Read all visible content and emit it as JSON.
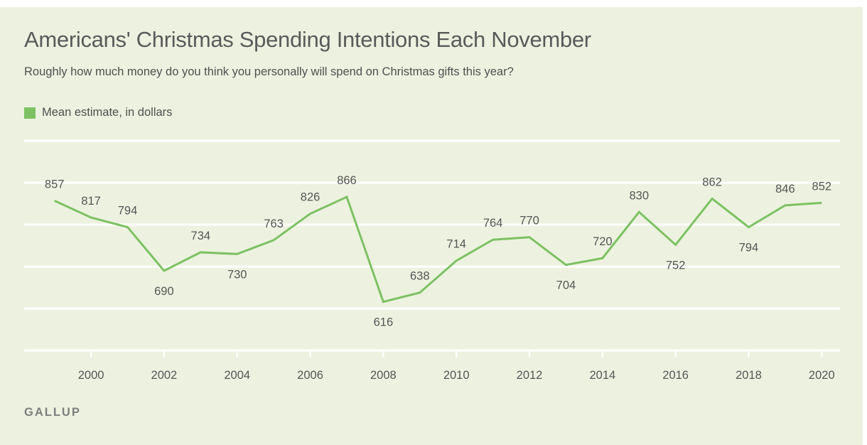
{
  "title": "Americans' Christmas Spending Intentions Each November",
  "subtitle": "Roughly how much money do you think you personally will spend on Christmas gifts this year?",
  "legend": {
    "label": "Mean estimate, in dollars"
  },
  "source": "GALLUP",
  "colors": {
    "line": "#7dc163",
    "background": "#edf2e0",
    "grid": "#ffffff",
    "text": "#555555"
  },
  "chart_data": {
    "type": "line",
    "x": [
      1999,
      2000,
      2001,
      2002,
      2003,
      2004,
      2005,
      2006,
      2007,
      2008,
      2009,
      2010,
      2011,
      2012,
      2013,
      2014,
      2015,
      2016,
      2017,
      2018,
      2019,
      2020
    ],
    "series": [
      {
        "name": "Mean estimate, in dollars",
        "values": [
          857,
          817,
          794,
          690,
          734,
          730,
          763,
          826,
          866,
          616,
          638,
          714,
          764,
          770,
          704,
          720,
          830,
          752,
          862,
          794,
          846,
          852
        ]
      }
    ],
    "x_ticks": [
      2000,
      2002,
      2004,
      2006,
      2008,
      2010,
      2012,
      2014,
      2016,
      2018,
      2020
    ],
    "xlim": [
      1998.17,
      2020.5
    ],
    "ylim": [
      500,
      1000
    ],
    "grid": true,
    "xlabel": "",
    "ylabel": ""
  }
}
